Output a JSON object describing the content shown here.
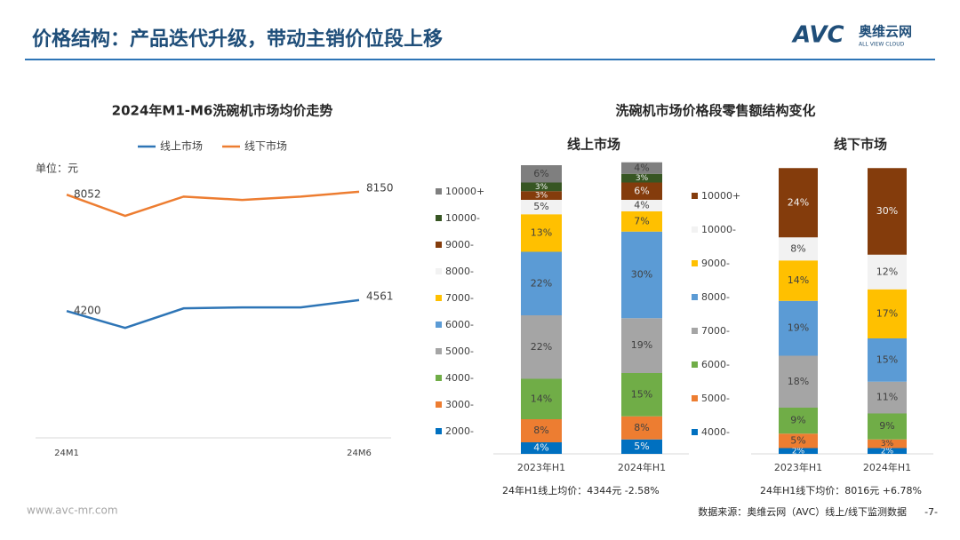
{
  "header": {
    "title": "价格结构：产品迭代升级，带动主销价位段上移",
    "logo": "AVC",
    "logo_cn": "奥维云网",
    "logo_en": "ALL VIEW CLOUD"
  },
  "structure_title": "洗碗机市场价格段零售额结构变化",
  "chart_data": [
    {
      "type": "line",
      "title": "2024年M1-M6洗碗机市场均价走势",
      "unit": "单位：元",
      "categories": [
        "24M1",
        null,
        null,
        null,
        null,
        "24M6"
      ],
      "ylim": [
        0,
        9000
      ],
      "series": [
        {
          "name": "线上市场",
          "color": "#2e75b6",
          "values": [
            4200,
            3640,
            4290,
            4320,
            4320,
            4561
          ]
        },
        {
          "name": "线下市场",
          "color": "#ed7d31",
          "values": [
            8052,
            7350,
            7990,
            7880,
            7990,
            8150
          ]
        }
      ]
    },
    {
      "type": "stacked_bar",
      "title": "线上市场",
      "categories": [
        "2023年H1",
        "2024年H1"
      ],
      "ylim": [
        0,
        100
      ],
      "note": "24年H1线上均价：4344元  -2.58%",
      "series": [
        {
          "name": "2000-",
          "color": "#0070c0",
          "values": [
            4,
            5
          ],
          "value_labels": [
            "4%",
            "5%"
          ]
        },
        {
          "name": "3000-",
          "color": "#ed7d31",
          "values": [
            8,
            8
          ],
          "value_labels": [
            "8%",
            "8%"
          ]
        },
        {
          "name": "4000-",
          "color": "#70ad47",
          "values": [
            14,
            15
          ],
          "value_labels": [
            "14%",
            "15%"
          ]
        },
        {
          "name": "5000-",
          "color": "#a5a5a5",
          "values": [
            22,
            19
          ],
          "value_labels": [
            "22%",
            "19%"
          ]
        },
        {
          "name": "6000-",
          "color": "#5b9bd5",
          "values": [
            22,
            30
          ],
          "value_labels": [
            "22%",
            "30%"
          ]
        },
        {
          "name": "7000-",
          "color": "#ffc000",
          "values": [
            13,
            7
          ],
          "value_labels": [
            "13%",
            "7%"
          ]
        },
        {
          "name": "8000-",
          "color": "#f2f2f2",
          "values": [
            5,
            4
          ],
          "value_labels": [
            "5%",
            "4%"
          ]
        },
        {
          "name": "9000-",
          "color": "#843c0c",
          "values": [
            3,
            6
          ],
          "value_labels": [
            "3%",
            "6%"
          ]
        },
        {
          "name": "10000-",
          "color": "#375623",
          "values": [
            3,
            3
          ],
          "value_labels": [
            "3%",
            "3%"
          ]
        },
        {
          "name": "10000+",
          "color": "#7f7f7f",
          "values": [
            6,
            4
          ],
          "value_labels": [
            "6%",
            "4%"
          ]
        }
      ]
    },
    {
      "type": "stacked_bar",
      "title": "线下市场",
      "categories": [
        "2023年H1",
        "2024年H1"
      ],
      "ylim": [
        0,
        100
      ],
      "note": "24年H1线下均价：8016元 +6.78%",
      "series": [
        {
          "name": "4000-",
          "color": "#0070c0",
          "values": [
            2,
            2
          ],
          "value_labels": [
            "2%",
            "2%"
          ]
        },
        {
          "name": "5000-",
          "color": "#ed7d31",
          "values": [
            5,
            3
          ],
          "value_labels": [
            "5%",
            "3%"
          ]
        },
        {
          "name": "6000-",
          "color": "#70ad47",
          "values": [
            9,
            9
          ],
          "value_labels": [
            "9%",
            "9%"
          ]
        },
        {
          "name": "7000-",
          "color": "#a5a5a5",
          "values": [
            18,
            11
          ],
          "value_labels": [
            "18%",
            "11%"
          ]
        },
        {
          "name": "8000-",
          "color": "#5b9bd5",
          "values": [
            19,
            15
          ],
          "value_labels": [
            "19%",
            "15%"
          ]
        },
        {
          "name": "9000-",
          "color": "#ffc000",
          "values": [
            14,
            17
          ],
          "value_labels": [
            "14%",
            "17%"
          ]
        },
        {
          "name": "10000-",
          "color": "#f2f2f2",
          "values": [
            8,
            12
          ],
          "value_labels": [
            "8%",
            "12%"
          ]
        },
        {
          "name": "10000+",
          "color": "#843c0c",
          "values": [
            24,
            30
          ],
          "value_labels": [
            "24%",
            "30%"
          ]
        }
      ]
    }
  ],
  "footer": {
    "url": "www.avc-mr.com",
    "source": "数据来源：奥维云网（AVC）线上/线下监测数据",
    "page": "-7-"
  }
}
